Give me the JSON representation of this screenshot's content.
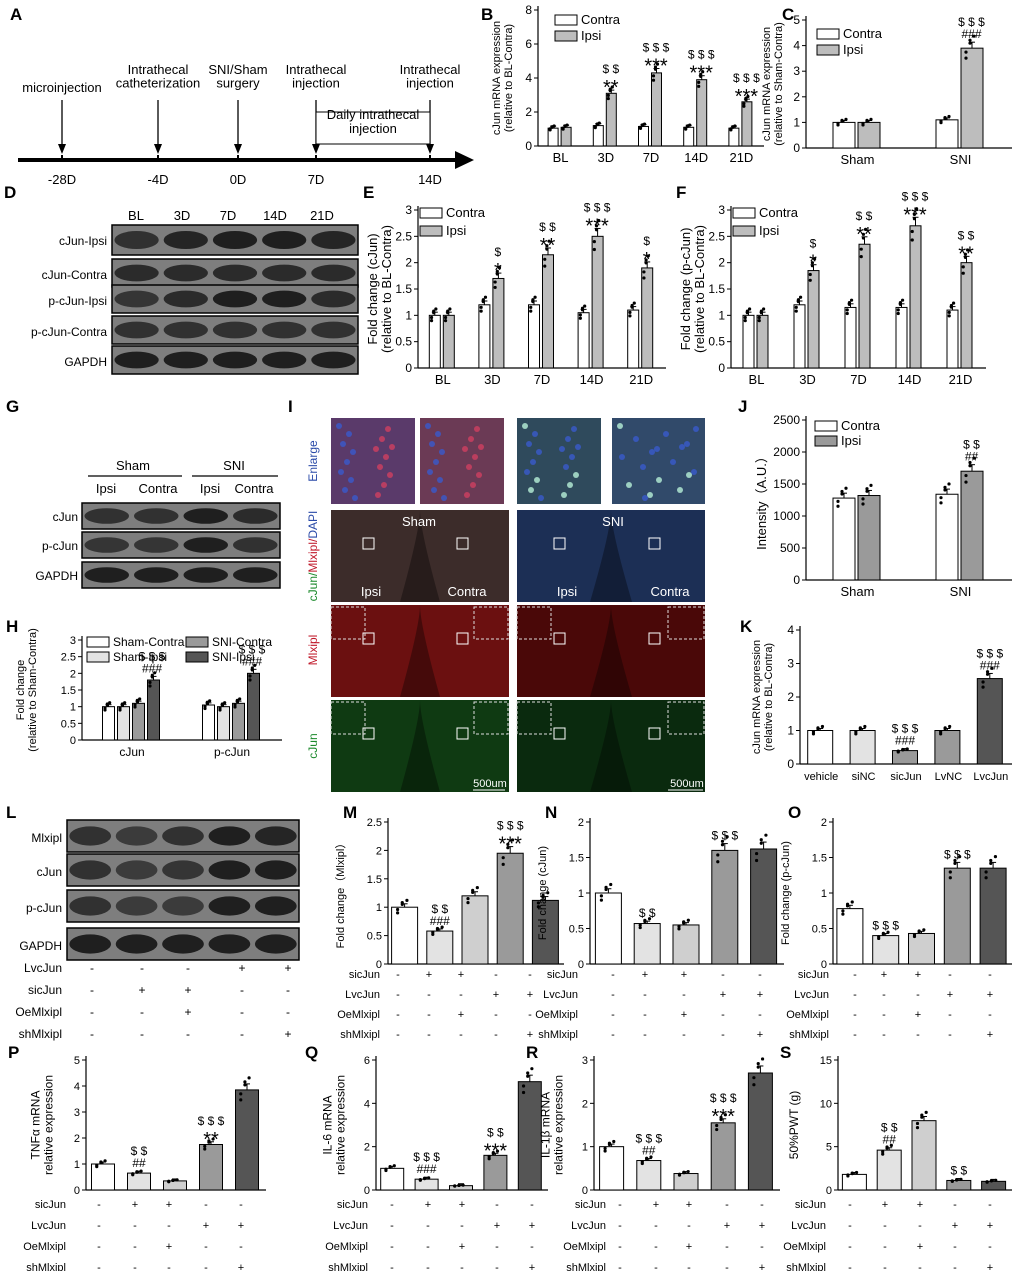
{
  "panel_letters": {
    "A": "A",
    "B": "B",
    "C": "C",
    "D": "D",
    "E": "E",
    "F": "F",
    "G": "G",
    "H": "H",
    "I": "I",
    "J": "J",
    "K": "K",
    "L": "L",
    "M": "M",
    "N": "N",
    "O": "O",
    "P": "P",
    "Q": "Q",
    "R": "R",
    "S": "S"
  },
  "timeline": {
    "days": [
      "-28D",
      "-4D",
      "0D",
      "7D",
      "14D"
    ],
    "events": [
      "microinjection",
      "Intrathecal\ncatheterization",
      "SNI/Sham\nsurgery",
      "Intrathecal\ninjection",
      "Intrathecal\ninjection"
    ],
    "daily_box": "Daily intrathecal\ninjection"
  },
  "common": {
    "contra": "Contra",
    "ipsi": "Ipsi",
    "sham": "Sham",
    "sni": "SNI",
    "sic": "sicJun",
    "lvc": "LvcJun",
    "oe": "OeMlxipl",
    "sh": "shMlxipl"
  },
  "blot_D": {
    "cols": [
      "BL",
      "3D",
      "7D",
      "14D",
      "21D"
    ],
    "rows": [
      "cJun-Ipsi",
      "cJun-Contra",
      "p-cJun-Ipsi",
      "p-cJun-Contra",
      "GAPDH"
    ]
  },
  "blot_G": {
    "groups": [
      "Sham",
      "SNI"
    ],
    "cols": [
      "Ipsi",
      "Contra",
      "Ipsi",
      "Contra"
    ],
    "rows": [
      "cJun",
      "p-cJun",
      "GAPDH"
    ]
  },
  "blot_L": {
    "rows": [
      "Mlxipl",
      "cJun",
      "p-cJun",
      "GAPDH"
    ],
    "signs_rows": [
      {
        "label": "LvcJun",
        "signs": [
          "-",
          "-",
          "-",
          "+",
          "+"
        ]
      },
      {
        "label": "sicJun",
        "signs": [
          "-",
          "+",
          "+",
          "-",
          "-"
        ]
      },
      {
        "label": "OeMlxipl",
        "signs": [
          "-",
          "-",
          "+",
          "-",
          "-"
        ]
      },
      {
        "label": "shMlxipl",
        "signs": [
          "-",
          "-",
          "-",
          "-",
          "+"
        ]
      }
    ]
  },
  "micro": {
    "row_labels": [
      "Enlarge",
      "cJun/Mlxipl/DAPI",
      "Mlxipl",
      "cJun"
    ],
    "sham": "Sham",
    "sni": "SNI",
    "ipsi": "Ipsi",
    "contra": "Contra",
    "scale": "500um"
  },
  "signs_std": [
    {
      "label": "sicJun",
      "signs": [
        "-",
        "+",
        "+",
        "-",
        "-"
      ]
    },
    {
      "label": "LvcJun",
      "signs": [
        "-",
        "-",
        "-",
        "+",
        "+"
      ]
    },
    {
      "label": "OeMlxipl",
      "signs": [
        "-",
        "-",
        "+",
        "-",
        "-"
      ]
    },
    {
      "label": "shMlxipl",
      "signs": [
        "-",
        "-",
        "-",
        "-",
        "+"
      ]
    }
  ],
  "chart_data": [
    {
      "id": "B",
      "type": "bar",
      "ylabel": "cJun mRNA expression\n(relative to BL-Contra)",
      "ylim": [
        0,
        8
      ],
      "yticks": [
        0,
        2,
        4,
        6,
        8
      ],
      "categories": [
        "BL",
        "3D",
        "7D",
        "14D",
        "21D"
      ],
      "series": [
        {
          "name": "Contra",
          "values": [
            1.05,
            1.2,
            1.15,
            1.1,
            1.05
          ]
        },
        {
          "name": "Ipsi",
          "values": [
            1.1,
            3.1,
            4.3,
            3.9,
            2.6
          ]
        }
      ],
      "annotations": [
        "",
        "**\n$ $",
        "***\n$ $ $",
        "***\n$ $ $",
        "***\n$ $ $"
      ]
    },
    {
      "id": "C",
      "type": "bar",
      "ylabel": "cJun mRNA expression\n(relative to Sham-Contra)",
      "ylim": [
        0,
        5
      ],
      "yticks": [
        0,
        1,
        2,
        3,
        4,
        5
      ],
      "categories": [
        "Sham",
        "SNI"
      ],
      "series": [
        {
          "name": "Contra",
          "values": [
            1.0,
            1.1
          ]
        },
        {
          "name": "Ipsi",
          "values": [
            1.0,
            3.9
          ]
        }
      ],
      "annotations": [
        "",
        "###\n$ $ $"
      ]
    },
    {
      "id": "E",
      "type": "bar",
      "ylabel": "Fold change (cJun)\n(relative to BL-Contra)",
      "ylim": [
        0,
        3
      ],
      "yticks": [
        0,
        0.5,
        1,
        1.5,
        2,
        2.5,
        3
      ],
      "categories": [
        "BL",
        "3D",
        "7D",
        "14D",
        "21D"
      ],
      "series": [
        {
          "name": "Contra",
          "values": [
            1.0,
            1.2,
            1.2,
            1.05,
            1.1
          ]
        },
        {
          "name": "Ipsi",
          "values": [
            1.0,
            1.7,
            2.15,
            2.5,
            1.9
          ]
        }
      ],
      "annotations": [
        "",
        "*\n$",
        "**\n$ $",
        "***\n$ $ $",
        "*\n$"
      ]
    },
    {
      "id": "F",
      "type": "bar",
      "ylabel": "Fold change (p-cJun)\n(relative to BL-Contra)",
      "ylim": [
        0,
        3
      ],
      "yticks": [
        0,
        0.5,
        1,
        1.5,
        2,
        2.5,
        3
      ],
      "categories": [
        "BL",
        "3D",
        "7D",
        "14D",
        "21D"
      ],
      "series": [
        {
          "name": "Contra",
          "values": [
            1.0,
            1.2,
            1.15,
            1.15,
            1.1
          ]
        },
        {
          "name": "Ipsi",
          "values": [
            1.0,
            1.85,
            2.35,
            2.7,
            2.0
          ]
        }
      ],
      "annotations": [
        "",
        "*\n$",
        "**\n$ $",
        "***\n$ $ $",
        "**\n$ $"
      ]
    },
    {
      "id": "H",
      "type": "bar",
      "ylabel": "Fold change\n(relative to Sham-Contra)",
      "ylim": [
        0,
        3
      ],
      "yticks": [
        0,
        0.5,
        1,
        1.5,
        2,
        2.5,
        3
      ],
      "categories": [
        "cJun",
        "p-cJun"
      ],
      "series": [
        {
          "name": "Sham-Contra",
          "values": [
            1.0,
            1.05
          ]
        },
        {
          "name": "Sham-Ipsi",
          "values": [
            1.0,
            1.0
          ]
        },
        {
          "name": "SNI-Contra",
          "values": [
            1.1,
            1.1
          ]
        },
        {
          "name": "SNI-Ipsi",
          "values": [
            1.8,
            2.0
          ]
        }
      ],
      "annotations": [
        "###\n$ $ $",
        "###\n$ $ $"
      ]
    },
    {
      "id": "J",
      "type": "bar",
      "ylabel": "Intensity（A.U.）",
      "ylim": [
        0,
        2500
      ],
      "yticks": [
        0,
        500,
        1000,
        1500,
        2000,
        2500
      ],
      "categories": [
        "Sham",
        "SNI"
      ],
      "series": [
        {
          "name": "Contra",
          "values": [
            1280,
            1340
          ]
        },
        {
          "name": "Ipsi",
          "values": [
            1320,
            1700
          ]
        }
      ],
      "annotations": [
        "",
        "##\n$ $"
      ]
    },
    {
      "id": "K",
      "type": "bar",
      "ylabel": "cJun mRNA expression\n(relative to BL-Contra)",
      "ylim": [
        0,
        4
      ],
      "yticks": [
        0,
        1,
        2,
        3,
        4
      ],
      "categories": [
        "vehicle",
        "siNC",
        "sicJun",
        "LvNC",
        "LvcJun"
      ],
      "values": [
        1.0,
        1.0,
        0.4,
        1.0,
        2.55
      ],
      "annotations": [
        "",
        "",
        "###\n$ $ $",
        "",
        "###\n$ $ $"
      ]
    },
    {
      "id": "M",
      "type": "bar",
      "ylabel": "Fold change（Mlxipl）",
      "ylim": [
        0,
        2.5
      ],
      "yticks": [
        0,
        0.5,
        1,
        1.5,
        2,
        2.5
      ],
      "values": [
        1.0,
        0.58,
        1.2,
        1.95,
        1.12
      ],
      "annotations": [
        "",
        "###\n$ $",
        "",
        "***\n$ $ $",
        ""
      ]
    },
    {
      "id": "N",
      "type": "bar",
      "ylabel": "Fold change (cJun)",
      "ylim": [
        0,
        2
      ],
      "yticks": [
        0,
        0.5,
        1,
        1.5,
        2
      ],
      "values": [
        1.0,
        0.57,
        0.55,
        1.6,
        1.62
      ],
      "annotations": [
        "",
        "$ $",
        "",
        "$ $ $",
        ""
      ]
    },
    {
      "id": "O",
      "type": "bar",
      "ylabel": "Fold change (p-cJun)",
      "ylim": [
        0,
        2
      ],
      "yticks": [
        0,
        0.5,
        1,
        1.5,
        2
      ],
      "values": [
        0.78,
        0.4,
        0.43,
        1.35,
        1.35
      ],
      "annotations": [
        "",
        "$ $ $",
        "",
        "$ $ $",
        ""
      ]
    },
    {
      "id": "P",
      "type": "bar",
      "ylabel": "TNFα mRNA\nrelative expression",
      "ylim": [
        0,
        5
      ],
      "yticks": [
        0,
        1,
        2,
        3,
        4,
        5
      ],
      "values": [
        1.0,
        0.65,
        0.35,
        1.75,
        3.85
      ],
      "annotations": [
        "",
        "##\n$ $",
        "",
        "**\n$ $ $",
        ""
      ]
    },
    {
      "id": "Q",
      "type": "bar",
      "ylabel": "IL-6 mRNA\nrelative expression",
      "ylim": [
        0,
        6
      ],
      "yticks": [
        0,
        2,
        4,
        6
      ],
      "values": [
        1.0,
        0.5,
        0.2,
        1.6,
        5.0
      ],
      "annotations": [
        "",
        "###\n$ $ $",
        "",
        "***\n$ $",
        ""
      ]
    },
    {
      "id": "R",
      "type": "bar",
      "ylabel": "IL-1β mRNA\nrelative expression",
      "ylim": [
        0,
        3
      ],
      "yticks": [
        0,
        1,
        2,
        3
      ],
      "values": [
        1.0,
        0.68,
        0.38,
        1.55,
        2.7
      ],
      "annotations": [
        "",
        "##\n$ $ $",
        "",
        "***\n$ $ $",
        ""
      ]
    },
    {
      "id": "S",
      "type": "bar",
      "ylabel": "50%PWT (g)",
      "ylim": [
        0,
        15
      ],
      "yticks": [
        0,
        5,
        10,
        15
      ],
      "values": [
        1.8,
        4.6,
        8.0,
        1.1,
        1.0
      ],
      "annotations": [
        "",
        "##\n$ $",
        "",
        "$ $",
        ""
      ]
    }
  ]
}
